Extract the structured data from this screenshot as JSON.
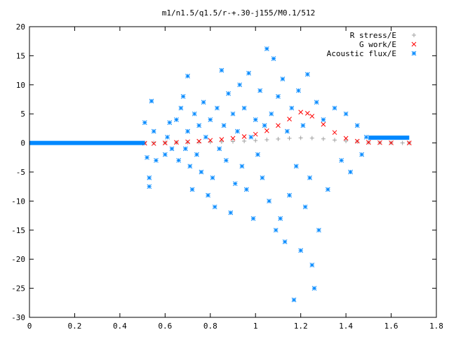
{
  "chart_data": {
    "type": "scatter",
    "title": "m1/n1.5/q1.5/r-+.30-j155/M0.1/512",
    "xlabel": "",
    "ylabel": "",
    "xlim": [
      0,
      1.8
    ],
    "ylim": [
      -30,
      20
    ],
    "x_ticks": [
      "0",
      "0.2",
      "0.4",
      "0.6",
      "0.8",
      "1",
      "1.2",
      "1.4",
      "1.6",
      "1.8"
    ],
    "y_ticks": [
      "20",
      "15",
      "10",
      "5",
      "0",
      "-5",
      "-10",
      "-15",
      "-20",
      "-25",
      "-30"
    ],
    "grid": false,
    "legend_position": "top-right",
    "series": [
      {
        "name": "R stress/E",
        "marker": "+",
        "color": "#a0a0a0",
        "points": [
          [
            0.51,
            0.0
          ],
          [
            0.55,
            0.02
          ],
          [
            0.6,
            0.05
          ],
          [
            0.65,
            0.08
          ],
          [
            0.7,
            0.1
          ],
          [
            0.75,
            0.13
          ],
          [
            0.8,
            0.16
          ],
          [
            0.85,
            0.2
          ],
          [
            0.9,
            0.25
          ],
          [
            0.95,
            0.32
          ],
          [
            1.0,
            0.42
          ],
          [
            1.05,
            0.55
          ],
          [
            1.1,
            0.68
          ],
          [
            1.15,
            0.8
          ],
          [
            1.2,
            0.87
          ],
          [
            1.25,
            0.83
          ],
          [
            1.3,
            0.7
          ],
          [
            1.35,
            0.5
          ],
          [
            1.4,
            0.32
          ],
          [
            1.45,
            0.2
          ],
          [
            1.5,
            0.1
          ],
          [
            1.55,
            0.05
          ],
          [
            1.6,
            0.02
          ],
          [
            1.65,
            0.0
          ],
          [
            1.68,
            0.0
          ]
        ]
      },
      {
        "name": "G work/E",
        "marker": "x",
        "color": "#ff0000",
        "points": [
          [
            0.51,
            -0.05
          ],
          [
            0.55,
            -0.1
          ],
          [
            0.6,
            0.0
          ],
          [
            0.65,
            0.1
          ],
          [
            0.7,
            0.2
          ],
          [
            0.75,
            0.3
          ],
          [
            0.8,
            0.45
          ],
          [
            0.85,
            0.6
          ],
          [
            0.9,
            0.8
          ],
          [
            0.95,
            1.1
          ],
          [
            1.0,
            1.5
          ],
          [
            1.05,
            2.1
          ],
          [
            1.1,
            3.0
          ],
          [
            1.15,
            4.1
          ],
          [
            1.2,
            5.3
          ],
          [
            1.23,
            5.1
          ],
          [
            1.25,
            4.6
          ],
          [
            1.3,
            3.2
          ],
          [
            1.35,
            1.8
          ],
          [
            1.4,
            0.8
          ],
          [
            1.45,
            0.3
          ],
          [
            1.5,
            0.1
          ],
          [
            1.55,
            0.05
          ],
          [
            1.6,
            0.02
          ],
          [
            1.68,
            0.0
          ]
        ]
      },
      {
        "name": "Acoustic flux/E",
        "marker": "*",
        "color": "#0088ff",
        "baseline": {
          "x_from": 0.0,
          "x_to": 0.51,
          "y": 0
        },
        "tail": {
          "x_from": 1.5,
          "x_to": 1.68,
          "y": 0.9
        },
        "points": [
          [
            0.51,
            3.5
          ],
          [
            0.52,
            -2.5
          ],
          [
            0.53,
            -6
          ],
          [
            0.53,
            -7.5
          ],
          [
            0.54,
            7.2
          ],
          [
            0.55,
            2
          ],
          [
            0.56,
            -3
          ],
          [
            0.6,
            -2
          ],
          [
            0.61,
            1
          ],
          [
            0.62,
            3.5
          ],
          [
            0.63,
            -1
          ],
          [
            0.65,
            4
          ],
          [
            0.66,
            -3
          ],
          [
            0.67,
            6
          ],
          [
            0.68,
            8
          ],
          [
            0.69,
            -1
          ],
          [
            0.7,
            11.5
          ],
          [
            0.7,
            2
          ],
          [
            0.71,
            -4
          ],
          [
            0.72,
            -8
          ],
          [
            0.73,
            5
          ],
          [
            0.74,
            -2
          ],
          [
            0.75,
            3
          ],
          [
            0.76,
            -5
          ],
          [
            0.77,
            7
          ],
          [
            0.78,
            1
          ],
          [
            0.79,
            -9
          ],
          [
            0.8,
            4
          ],
          [
            0.81,
            -6
          ],
          [
            0.82,
            -11
          ],
          [
            0.83,
            6
          ],
          [
            0.84,
            -1
          ],
          [
            0.85,
            12.5
          ],
          [
            0.86,
            3
          ],
          [
            0.87,
            -3
          ],
          [
            0.88,
            8.5
          ],
          [
            0.89,
            -12
          ],
          [
            0.9,
            5
          ],
          [
            0.91,
            -7
          ],
          [
            0.92,
            2
          ],
          [
            0.93,
            10
          ],
          [
            0.94,
            -4
          ],
          [
            0.95,
            6
          ],
          [
            0.96,
            -8
          ],
          [
            0.97,
            12
          ],
          [
            0.98,
            1
          ],
          [
            0.99,
            -13
          ],
          [
            1.0,
            4
          ],
          [
            1.01,
            -2
          ],
          [
            1.02,
            9
          ],
          [
            1.03,
            -6
          ],
          [
            1.04,
            3
          ],
          [
            1.05,
            16.2
          ],
          [
            1.06,
            -10
          ],
          [
            1.07,
            5
          ],
          [
            1.08,
            14.5
          ],
          [
            1.09,
            -15
          ],
          [
            1.1,
            8
          ],
          [
            1.11,
            -13
          ],
          [
            1.12,
            11
          ],
          [
            1.13,
            -17
          ],
          [
            1.14,
            2
          ],
          [
            1.15,
            -9
          ],
          [
            1.16,
            6
          ],
          [
            1.17,
            -27
          ],
          [
            1.18,
            -4
          ],
          [
            1.19,
            9
          ],
          [
            1.2,
            -18.5
          ],
          [
            1.21,
            3
          ],
          [
            1.22,
            -11
          ],
          [
            1.23,
            11.8
          ],
          [
            1.24,
            -6
          ],
          [
            1.25,
            -21
          ],
          [
            1.26,
            -25
          ],
          [
            1.27,
            7
          ],
          [
            1.28,
            -15
          ],
          [
            1.3,
            4
          ],
          [
            1.32,
            -8
          ],
          [
            1.35,
            6
          ],
          [
            1.38,
            -3
          ],
          [
            1.4,
            5
          ],
          [
            1.42,
            -5
          ],
          [
            1.45,
            3
          ],
          [
            1.47,
            -2
          ],
          [
            1.49,
            1
          ]
        ]
      }
    ]
  }
}
